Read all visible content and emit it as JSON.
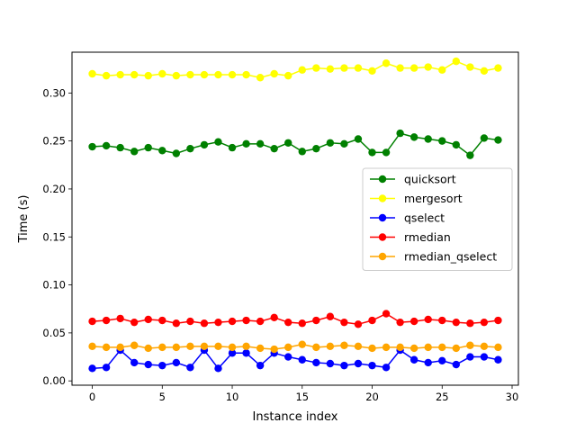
{
  "chart_data": {
    "type": "line",
    "title": "",
    "xlabel": "Instance index",
    "ylabel": "Time (s)",
    "xlim": [
      -1.45,
      30.45
    ],
    "ylim": [
      -0.0045,
      0.3425
    ],
    "xticks": [
      0,
      5,
      10,
      15,
      20,
      25,
      30
    ],
    "yticks": [
      0.0,
      0.05,
      0.1,
      0.15,
      0.2,
      0.25,
      0.3
    ],
    "ytick_labels": [
      "0.00",
      "0.05",
      "0.10",
      "0.15",
      "0.20",
      "0.25",
      "0.30"
    ],
    "grid": false,
    "legend_position": "center-right",
    "x": [
      0,
      1,
      2,
      3,
      4,
      5,
      6,
      7,
      8,
      9,
      10,
      11,
      12,
      13,
      14,
      15,
      16,
      17,
      18,
      19,
      20,
      21,
      22,
      23,
      24,
      25,
      26,
      27,
      28,
      29
    ],
    "series": [
      {
        "name": "quicksort",
        "color": "#008000",
        "values": [
          0.244,
          0.245,
          0.243,
          0.239,
          0.243,
          0.24,
          0.237,
          0.242,
          0.246,
          0.249,
          0.243,
          0.247,
          0.247,
          0.242,
          0.248,
          0.239,
          0.242,
          0.248,
          0.247,
          0.252,
          0.238,
          0.238,
          0.258,
          0.254,
          0.252,
          0.25,
          0.246,
          0.235,
          0.253,
          0.251
        ]
      },
      {
        "name": "mergesort",
        "color": "#ffff00",
        "values": [
          0.32,
          0.318,
          0.319,
          0.319,
          0.318,
          0.32,
          0.318,
          0.319,
          0.319,
          0.319,
          0.319,
          0.319,
          0.316,
          0.32,
          0.318,
          0.324,
          0.326,
          0.325,
          0.326,
          0.326,
          0.323,
          0.331,
          0.326,
          0.326,
          0.327,
          0.324,
          0.333,
          0.327,
          0.323,
          0.326
        ]
      },
      {
        "name": "qselect",
        "color": "#0000ff",
        "values": [
          0.013,
          0.014,
          0.032,
          0.019,
          0.017,
          0.016,
          0.019,
          0.014,
          0.032,
          0.013,
          0.029,
          0.029,
          0.016,
          0.029,
          0.025,
          0.022,
          0.019,
          0.018,
          0.016,
          0.018,
          0.016,
          0.014,
          0.032,
          0.022,
          0.019,
          0.021,
          0.017,
          0.025,
          0.025,
          0.022
        ]
      },
      {
        "name": "rmedian",
        "color": "#ff0000",
        "values": [
          0.062,
          0.063,
          0.065,
          0.061,
          0.064,
          0.063,
          0.06,
          0.062,
          0.06,
          0.061,
          0.062,
          0.063,
          0.062,
          0.066,
          0.061,
          0.06,
          0.063,
          0.067,
          0.061,
          0.059,
          0.063,
          0.07,
          0.061,
          0.062,
          0.064,
          0.063,
          0.061,
          0.06,
          0.061,
          0.063
        ]
      },
      {
        "name": "rmedian_qselect",
        "color": "#ffa500",
        "values": [
          0.036,
          0.035,
          0.035,
          0.037,
          0.034,
          0.035,
          0.035,
          0.036,
          0.036,
          0.036,
          0.035,
          0.036,
          0.034,
          0.033,
          0.035,
          0.038,
          0.035,
          0.036,
          0.037,
          0.036,
          0.034,
          0.035,
          0.035,
          0.034,
          0.035,
          0.035,
          0.034,
          0.037,
          0.036,
          0.035
        ]
      }
    ]
  }
}
